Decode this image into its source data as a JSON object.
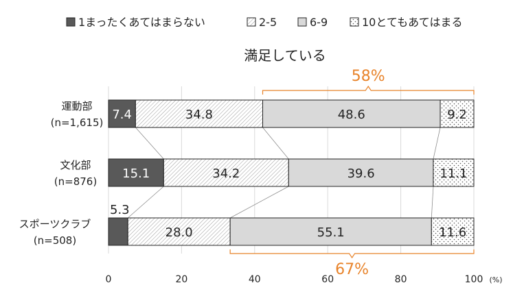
{
  "chart_data": {
    "type": "bar",
    "orientation": "horizontal",
    "stacked": true,
    "title": "満足している",
    "x_unit": "(%)",
    "xlim": [
      0,
      100
    ],
    "x_ticks": [
      "0",
      "20",
      "40",
      "60",
      "80",
      "100"
    ],
    "grid": "vertical",
    "legend_position": "top",
    "categories": [
      {
        "name": "運動部",
        "n": "(n=1,615)"
      },
      {
        "name": "文化部",
        "n": "(n=876)"
      },
      {
        "name": "スポーツクラブ",
        "n": "(n=508)"
      }
    ],
    "series": [
      {
        "name": "1まったくあてはまらない",
        "values": [
          7.4,
          15.1,
          5.3
        ],
        "labels": [
          "7.4",
          "15.1",
          "5.3"
        ],
        "color": "#595959",
        "pattern": "solid"
      },
      {
        "name": "2-5",
        "values": [
          34.8,
          34.2,
          28.0
        ],
        "labels": [
          "34.8",
          "34.2",
          "28.0"
        ],
        "color": "#ffffff",
        "pattern": "hatch"
      },
      {
        "name": "6-9",
        "values": [
          48.6,
          39.6,
          55.1
        ],
        "labels": [
          "48.6",
          "39.6",
          "55.1"
        ],
        "color": "#d9d9d9",
        "pattern": "solid"
      },
      {
        "name": "10とてもあてはまる",
        "values": [
          9.2,
          11.1,
          11.6
        ],
        "labels": [
          "9.2",
          "11.1",
          "11.6"
        ],
        "color": "#ffffff",
        "pattern": "dots"
      }
    ],
    "annotations": [
      {
        "text": "58%",
        "category_index": 0,
        "from_series": 2,
        "side": "above",
        "color": "#e8832a"
      },
      {
        "text": "67%",
        "category_index": 2,
        "from_series": 2,
        "side": "below",
        "color": "#e8832a"
      }
    ]
  }
}
